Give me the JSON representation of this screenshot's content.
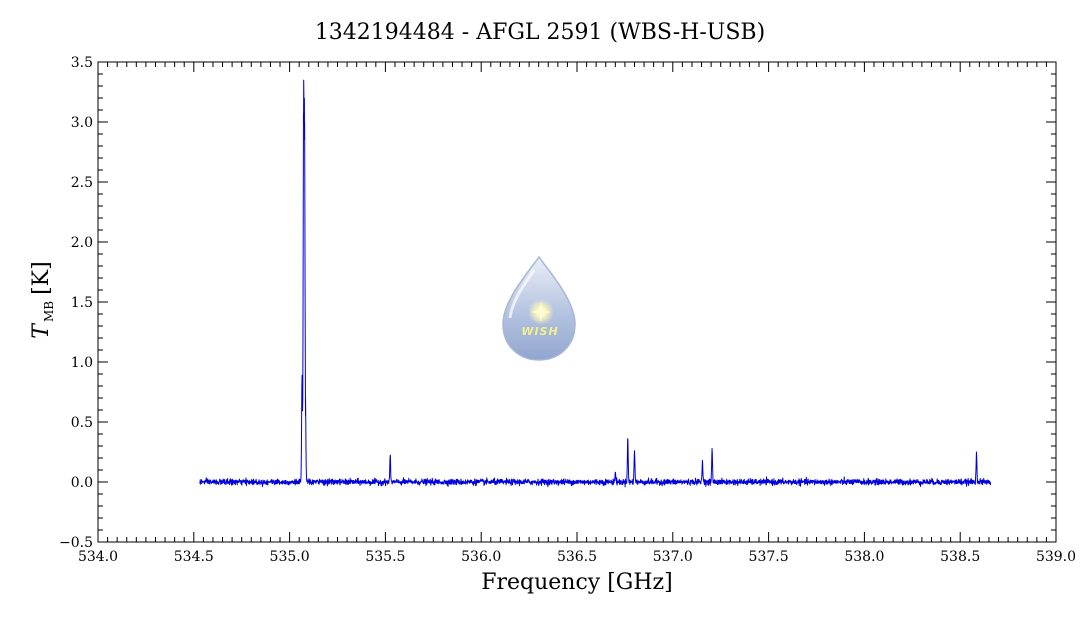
{
  "chart_data": {
    "type": "line",
    "title": "1342194484 - AFGL 2591 (WBS-H-USB)",
    "xlabel": "Frequency [GHz]",
    "ylabel_symbol": "T",
    "ylabel_subscript": "MB",
    "ylabel_unit": "[K]",
    "xlim": [
      534.0,
      539.0
    ],
    "ylim": [
      -0.5,
      3.5
    ],
    "xticks": [
      "534.0",
      "534.5",
      "535.0",
      "535.5",
      "536.0",
      "536.5",
      "537.0",
      "537.5",
      "538.0",
      "538.5",
      "539.0"
    ],
    "yticks": [
      "−0.5",
      "0.0",
      "0.5",
      "1.0",
      "1.5",
      "2.0",
      "2.5",
      "3.0",
      "3.5"
    ],
    "grid": false,
    "series": [
      {
        "color": "#0000dd",
        "x_range": [
          534.53,
          538.66
        ],
        "baseline": 0.0,
        "noise_rms": 0.012,
        "lines": [
          {
            "x": 535.065,
            "peak": 0.87
          },
          {
            "x": 535.073,
            "peak": 3.08
          },
          {
            "x": 535.078,
            "peak": 2.85
          },
          {
            "x": 535.083,
            "peak": 0.55
          },
          {
            "x": 535.525,
            "peak": 0.21
          },
          {
            "x": 536.7,
            "peak": 0.08
          },
          {
            "x": 536.765,
            "peak": 0.36
          },
          {
            "x": 536.8,
            "peak": 0.26
          },
          {
            "x": 537.155,
            "peak": 0.18
          },
          {
            "x": 537.205,
            "peak": 0.27
          },
          {
            "x": 538.585,
            "peak": 0.25
          }
        ]
      }
    ]
  },
  "logo": {
    "text": "WISH",
    "icon": "water-drop-star-logo"
  }
}
